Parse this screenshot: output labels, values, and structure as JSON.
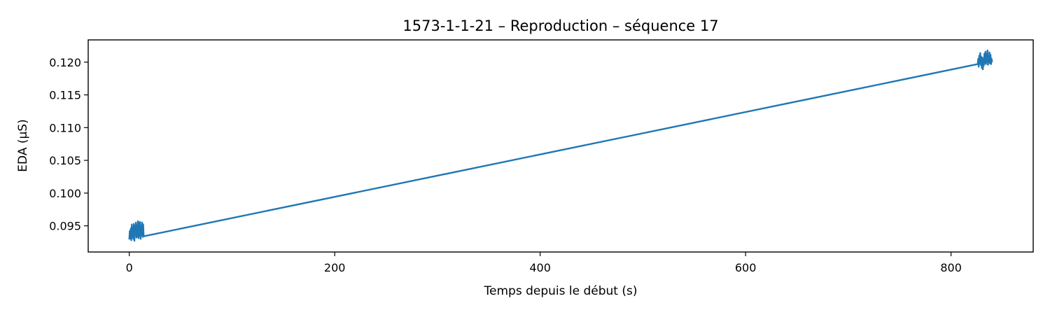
{
  "chart_data": {
    "type": "line",
    "title": "1573-1-1-21 – Reproduction – séquence 17",
    "xlabel": "Temps depuis le début (s)",
    "ylabel": "EDA (µS)",
    "xlim": [
      -40,
      880
    ],
    "ylim": [
      0.091,
      0.1234
    ],
    "xticks": [
      0,
      200,
      400,
      600,
      800
    ],
    "xtick_labels": [
      "0",
      "200",
      "400",
      "600",
      "800"
    ],
    "yticks": [
      0.095,
      0.1,
      0.105,
      0.11,
      0.115,
      0.12
    ],
    "ytick_labels": [
      "0.095",
      "0.100",
      "0.105",
      "0.110",
      "0.115",
      "0.120"
    ],
    "grid": false,
    "color": "#1f77b4",
    "series": [
      {
        "x": [
          0,
          0.5,
          1,
          1.5,
          2,
          2.5,
          3,
          3.5,
          4,
          4.5,
          5,
          5.5,
          6,
          6.5,
          7,
          7.5,
          8,
          8.5,
          9,
          9.5,
          10,
          10.5,
          11,
          11.5,
          12,
          12.5,
          13,
          13.5,
          14,
          826,
          826.5,
          827,
          827.5,
          828,
          828.5,
          829,
          829.5,
          830,
          830.5,
          831,
          831.5,
          832,
          832.5,
          833,
          833.5,
          834,
          834.5,
          835,
          835.5,
          836,
          836.5,
          837,
          837.5,
          838,
          838.5,
          839,
          839.5,
          840
        ],
        "y": [
          0.0929,
          0.0942,
          0.0931,
          0.0946,
          0.0928,
          0.0952,
          0.0933,
          0.0948,
          0.093,
          0.0953,
          0.0927,
          0.095,
          0.0936,
          0.0955,
          0.0932,
          0.0951,
          0.0934,
          0.0957,
          0.0931,
          0.0954,
          0.0935,
          0.0956,
          0.093,
          0.095,
          0.0936,
          0.0955,
          0.0933,
          0.0952,
          0.0934,
          0.1197,
          0.1205,
          0.1193,
          0.121,
          0.1198,
          0.1214,
          0.1196,
          0.1208,
          0.1191,
          0.1207,
          0.1189,
          0.1204,
          0.1195,
          0.1213,
          0.1199,
          0.1216,
          0.1197,
          0.1212,
          0.1201,
          0.1218,
          0.1196,
          0.1209,
          0.12,
          0.1215,
          0.1198,
          0.1211,
          0.1197,
          0.1205,
          0.12
        ]
      }
    ]
  }
}
